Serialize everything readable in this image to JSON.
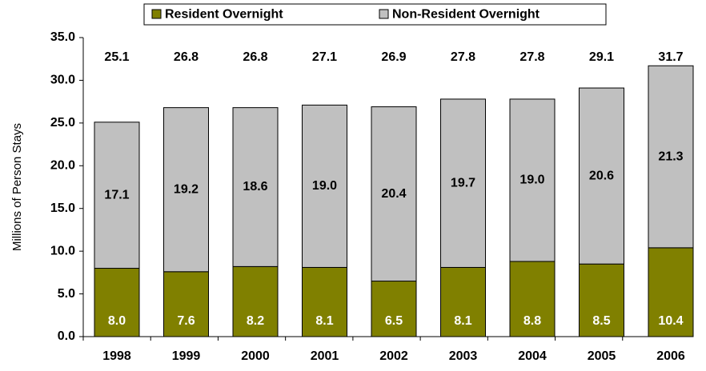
{
  "chart_data": {
    "type": "stacked_bar",
    "y_label": "Millions of Person Stays",
    "categories": [
      "1998",
      "1999",
      "2000",
      "2001",
      "2002",
      "2003",
      "2004",
      "2005",
      "2006"
    ],
    "series": [
      {
        "name": "Resident Overnight",
        "color": "#808000",
        "values": [
          8.0,
          7.6,
          8.2,
          8.1,
          6.5,
          8.1,
          8.8,
          8.5,
          10.4
        ],
        "value_labels": [
          "8.0",
          "7.6",
          "8.2",
          "8.1",
          "6.5",
          "8.1",
          "8.8",
          "8.5",
          "10.4"
        ]
      },
      {
        "name": "Non-Resident Overnight",
        "color": "#c0c0c0",
        "values": [
          17.1,
          19.2,
          18.6,
          19.0,
          20.4,
          19.7,
          19.0,
          20.6,
          21.3
        ],
        "value_labels": [
          "17.1",
          "19.2",
          "18.6",
          "19.0",
          "20.4",
          "19.7",
          "19.0",
          "20.6",
          "21.3"
        ]
      }
    ],
    "totals": [
      25.1,
      26.8,
      26.8,
      27.1,
      26.9,
      27.8,
      27.8,
      29.1,
      31.7
    ],
    "ylim": [
      0,
      35
    ],
    "yticks": [
      {
        "value": 0,
        "label": "0.0"
      },
      {
        "value": 5,
        "label": "5.0"
      },
      {
        "value": 10,
        "label": "10.0"
      },
      {
        "value": 15,
        "label": "15.0"
      },
      {
        "value": 20,
        "label": "20.0"
      },
      {
        "value": 25,
        "label": "25.0"
      },
      {
        "value": 30,
        "label": "30.0"
      },
      {
        "value": 35,
        "label": "35.0"
      }
    ],
    "legend": "top"
  }
}
